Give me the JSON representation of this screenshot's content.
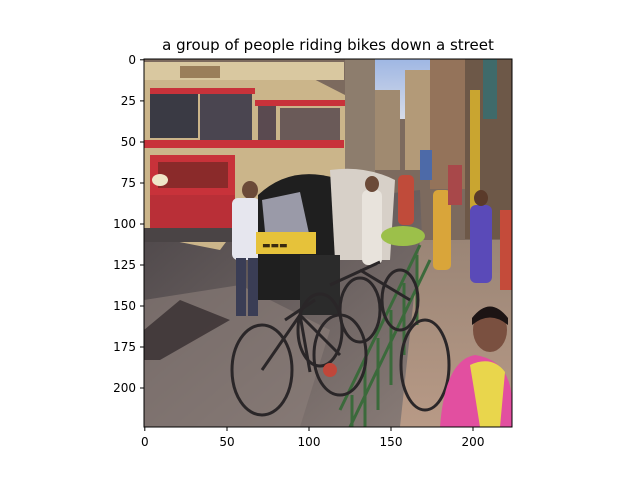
{
  "figure": {
    "title": "a group of people riding bikes down a street"
  },
  "axes": {
    "x_ticks": [
      "0",
      "50",
      "100",
      "150",
      "200"
    ],
    "y_ticks": [
      "0",
      "25",
      "50",
      "75",
      "100",
      "125",
      "150",
      "175",
      "200"
    ]
  },
  "image": {
    "description_icon": "street-photo-image",
    "palette": {
      "sky": "#b8c8e6",
      "bus_cream": "#cbb58a",
      "bus_red": "#c8323a",
      "rickshaw_yellow": "#e6c23a",
      "rickshaw_black": "#1f1f1f",
      "road": "#6e6a6a",
      "sidewalk": "#a89080",
      "railing_green": "#3b6a3b",
      "saree_pink": "#e24fa0",
      "saree_yellow": "#e9d64c",
      "building": "#8a6b55",
      "shadow": "#3a3033"
    }
  }
}
